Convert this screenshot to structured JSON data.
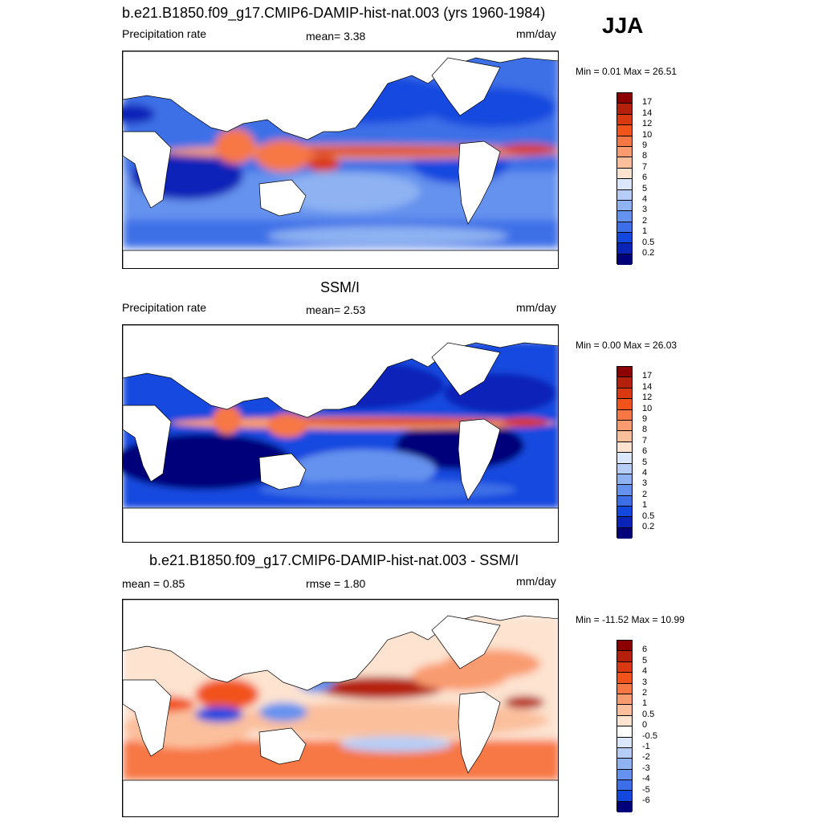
{
  "season": "JJA",
  "panels": [
    {
      "title": "b.e21.B1850.f09_g17.CMIP6-DAMIP-hist-nat.003 (yrs 1960-1984)",
      "left_label": "Precipitation rate",
      "mid_label": "mean=   3.38",
      "units": "mm/day",
      "minmax": "Min =   0.01 Max =  26.51",
      "colorbar": {
        "labels": [
          "17",
          "14",
          "12",
          "10",
          "9",
          "8",
          "7",
          "6",
          "5",
          "4",
          "3",
          "2",
          "1",
          "0.5",
          "0.2"
        ],
        "colors": [
          "#8b0000",
          "#b5200d",
          "#d93811",
          "#f2531b",
          "#f77744",
          "#f99b6f",
          "#fbbf9c",
          "#fde3d0",
          "#dbe8fb",
          "#b6cef7",
          "#8eb2f2",
          "#6592ee",
          "#3c6fe7",
          "#1348df",
          "#0a24b8",
          "#00007a"
        ]
      }
    },
    {
      "title": "SSM/I",
      "left_label": "Precipitation rate",
      "mid_label": "mean=   2.53",
      "units": "mm/day",
      "minmax": "Min =   0.00 Max =  26.03",
      "colorbar": {
        "labels": [
          "17",
          "14",
          "12",
          "10",
          "9",
          "8",
          "7",
          "6",
          "5",
          "4",
          "3",
          "2",
          "1",
          "0.5",
          "0.2"
        ],
        "colors": [
          "#8b0000",
          "#b5200d",
          "#d93811",
          "#f2531b",
          "#f77744",
          "#f99b6f",
          "#fbbf9c",
          "#fde3d0",
          "#dbe8fb",
          "#b6cef7",
          "#8eb2f2",
          "#6592ee",
          "#3c6fe7",
          "#1348df",
          "#0a24b8",
          "#00007a"
        ]
      }
    },
    {
      "title": "b.e21.B1850.f09_g17.CMIP6-DAMIP-hist-nat.003 - SSM/I",
      "left_label": "mean =   0.85",
      "mid_label": "rmse =   1.80",
      "units": "mm/day",
      "minmax": "Min = -11.52 Max =  10.99",
      "colorbar": {
        "labels": [
          "6",
          "5",
          "4",
          "3",
          "2",
          "1",
          "0.5",
          "0",
          "-0.5",
          "-1",
          "-2",
          "-3",
          "-4",
          "-5",
          "-6"
        ],
        "colors": [
          "#8b0000",
          "#b5200d",
          "#d93811",
          "#f2531b",
          "#f77744",
          "#f99b6f",
          "#fbbf9c",
          "#fde3d0",
          "#ffffff",
          "#dbe8fb",
          "#b6cef7",
          "#8eb2f2",
          "#6592ee",
          "#3c6fe7",
          "#1348df",
          "#00007a"
        ]
      }
    }
  ]
}
